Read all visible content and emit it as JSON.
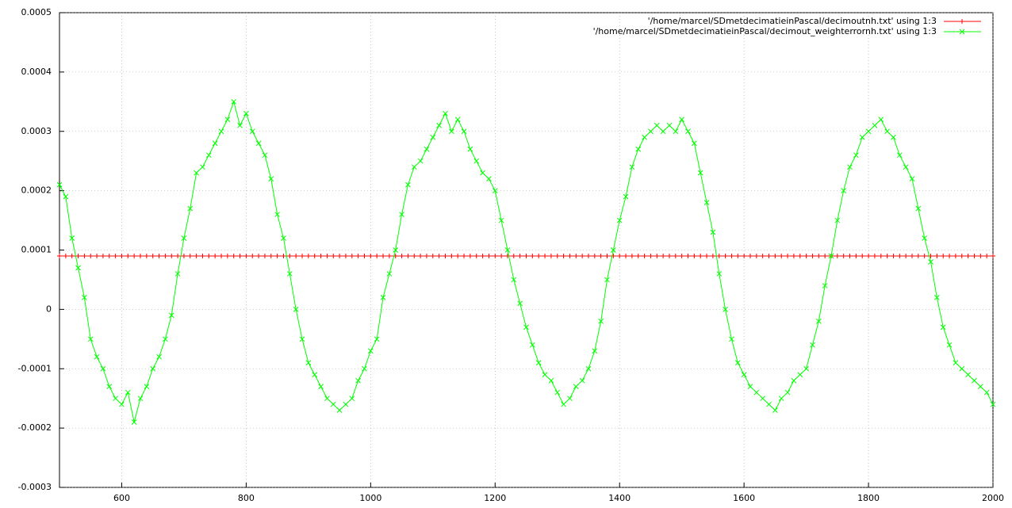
{
  "chart_data": {
    "type": "line",
    "x": [
      500,
      510,
      520,
      530,
      540,
      550,
      560,
      570,
      580,
      590,
      600,
      610,
      620,
      630,
      640,
      650,
      660,
      670,
      680,
      690,
      700,
      710,
      720,
      730,
      740,
      750,
      760,
      770,
      780,
      790,
      800,
      810,
      820,
      830,
      840,
      850,
      860,
      870,
      880,
      890,
      900,
      910,
      920,
      930,
      940,
      950,
      960,
      970,
      980,
      990,
      1000,
      1010,
      1020,
      1030,
      1040,
      1050,
      1060,
      1070,
      1080,
      1090,
      1100,
      1110,
      1120,
      1130,
      1140,
      1150,
      1160,
      1170,
      1180,
      1190,
      1200,
      1210,
      1220,
      1230,
      1240,
      1250,
      1260,
      1270,
      1280,
      1290,
      1300,
      1310,
      1320,
      1330,
      1340,
      1350,
      1360,
      1370,
      1380,
      1390,
      1400,
      1410,
      1420,
      1430,
      1440,
      1450,
      1460,
      1470,
      1480,
      1490,
      1500,
      1510,
      1520,
      1530,
      1540,
      1550,
      1560,
      1570,
      1580,
      1590,
      1600,
      1610,
      1620,
      1630,
      1640,
      1650,
      1660,
      1670,
      1680,
      1690,
      1700,
      1710,
      1720,
      1730,
      1740,
      1750,
      1760,
      1770,
      1780,
      1790,
      1800,
      1810,
      1820,
      1830,
      1840,
      1850,
      1860,
      1870,
      1880,
      1890,
      1900,
      1910,
      1920,
      1930,
      1940,
      1950,
      1960,
      1970,
      1980,
      1990,
      2000
    ],
    "series": [
      {
        "name": "'/home/marcel/SDmetdecimatieinPascal/decimoutnh.txt' using 1:3",
        "color": "#ff0000",
        "marker": "plus",
        "values": [
          9e-05,
          9e-05,
          9e-05,
          9e-05,
          9e-05,
          9e-05,
          9e-05,
          9e-05,
          9e-05,
          9e-05,
          9e-05,
          9e-05,
          9e-05,
          9e-05,
          9e-05,
          9e-05,
          9e-05,
          9e-05,
          9e-05,
          9e-05,
          9e-05,
          9e-05,
          9e-05,
          9e-05,
          9e-05,
          9e-05,
          9e-05,
          9e-05,
          9e-05,
          9e-05,
          9e-05,
          9e-05,
          9e-05,
          9e-05,
          9e-05,
          9e-05,
          9e-05,
          9e-05,
          9e-05,
          9e-05,
          9e-05,
          9e-05,
          9e-05,
          9e-05,
          9e-05,
          9e-05,
          9e-05,
          9e-05,
          9e-05,
          9e-05,
          9e-05,
          9e-05,
          9e-05,
          9e-05,
          9e-05,
          9e-05,
          9e-05,
          9e-05,
          9e-05,
          9e-05,
          9e-05,
          9e-05,
          9e-05,
          9e-05,
          9e-05,
          9e-05,
          9e-05,
          9e-05,
          9e-05,
          9e-05,
          9e-05,
          9e-05,
          9e-05,
          9e-05,
          9e-05,
          9e-05,
          9e-05,
          9e-05,
          9e-05,
          9e-05,
          9e-05,
          9e-05,
          9e-05,
          9e-05,
          9e-05,
          9e-05,
          9e-05,
          9e-05,
          9e-05,
          9e-05,
          9e-05,
          9e-05,
          9e-05,
          9e-05,
          9e-05,
          9e-05,
          9e-05,
          9e-05,
          9e-05,
          9e-05,
          9e-05,
          9e-05,
          9e-05,
          9e-05,
          9e-05,
          9e-05,
          9e-05,
          9e-05,
          9e-05,
          9e-05,
          9e-05,
          9e-05,
          9e-05,
          9e-05,
          9e-05,
          9e-05,
          9e-05,
          9e-05,
          9e-05,
          9e-05,
          9e-05,
          9e-05,
          9e-05,
          9e-05,
          9e-05,
          9e-05,
          9e-05,
          9e-05,
          9e-05,
          9e-05,
          9e-05,
          9e-05,
          9e-05,
          9e-05,
          9e-05,
          9e-05,
          9e-05,
          9e-05,
          9e-05,
          9e-05,
          9e-05,
          9e-05,
          9e-05,
          9e-05,
          9e-05,
          9e-05,
          9e-05,
          9e-05,
          9e-05,
          9e-05,
          9e-05
        ]
      },
      {
        "name": "'/home/marcel/SDmetdecimatieinPascal/decimout_weighterrornh.txt' using 1:3",
        "color": "#00ff00",
        "marker": "cross",
        "values": [
          0.00021,
          0.00019,
          0.00012,
          7e-05,
          2e-05,
          -5e-05,
          -8e-05,
          -0.0001,
          -0.00013,
          -0.00015,
          -0.00016,
          -0.00014,
          -0.00019,
          -0.00015,
          -0.00013,
          -0.0001,
          -8e-05,
          -5e-05,
          -1e-05,
          6e-05,
          0.00012,
          0.00017,
          0.00023,
          0.00024,
          0.00026,
          0.00028,
          0.0003,
          0.00032,
          0.00035,
          0.00031,
          0.00033,
          0.0003,
          0.00028,
          0.00026,
          0.00022,
          0.00016,
          0.00012,
          6e-05,
          0,
          -5e-05,
          -9e-05,
          -0.00011,
          -0.00013,
          -0.00015,
          -0.00016,
          -0.00017,
          -0.00016,
          -0.00015,
          -0.00012,
          -0.0001,
          -7e-05,
          -5e-05,
          2e-05,
          6e-05,
          0.0001,
          0.00016,
          0.00021,
          0.00024,
          0.00025,
          0.00027,
          0.00029,
          0.00031,
          0.00033,
          0.0003,
          0.00032,
          0.0003,
          0.00027,
          0.00025,
          0.00023,
          0.00022,
          0.0002,
          0.00015,
          0.0001,
          5e-05,
          1e-05,
          -3e-05,
          -6e-05,
          -9e-05,
          -0.00011,
          -0.00012,
          -0.00014,
          -0.00016,
          -0.00015,
          -0.00013,
          -0.00012,
          -0.0001,
          -7e-05,
          -2e-05,
          5e-05,
          0.0001,
          0.00015,
          0.00019,
          0.00024,
          0.00027,
          0.00029,
          0.0003,
          0.00031,
          0.0003,
          0.00031,
          0.0003,
          0.00032,
          0.0003,
          0.00028,
          0.00023,
          0.00018,
          0.00013,
          6e-05,
          0,
          -5e-05,
          -9e-05,
          -0.00011,
          -0.00013,
          -0.00014,
          -0.00015,
          -0.00016,
          -0.00017,
          -0.00015,
          -0.00014,
          -0.00012,
          -0.00011,
          -0.0001,
          -6e-05,
          -2e-05,
          4e-05,
          9e-05,
          0.00015,
          0.0002,
          0.00024,
          0.00026,
          0.00029,
          0.0003,
          0.00031,
          0.00032,
          0.0003,
          0.00029,
          0.00026,
          0.00024,
          0.00022,
          0.00017,
          0.00012,
          8e-05,
          2e-05,
          -3e-05,
          -6e-05,
          -9e-05,
          -0.0001,
          -0.00011,
          -0.00012,
          -0.00013,
          -0.00014,
          -0.00016
        ]
      }
    ],
    "xlim": [
      500,
      2000
    ],
    "xticks": [
      600,
      800,
      1000,
      1200,
      1400,
      1600,
      1800,
      2000
    ],
    "ylim": [
      -0.0003,
      0.0005
    ],
    "yticks": [
      -0.0003,
      -0.0002,
      -0.0001,
      0,
      0.0001,
      0.0002,
      0.0003,
      0.0004,
      0.0005
    ],
    "grid": true,
    "legend": "top-right"
  }
}
